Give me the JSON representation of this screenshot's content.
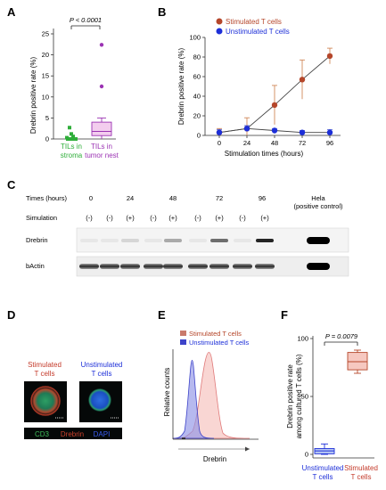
{
  "panels": {
    "A": "A",
    "B": "B",
    "C": "C",
    "D": "D",
    "E": "E",
    "F": "F"
  },
  "colors": {
    "stimulated": "#b5462a",
    "unstimulated": "#1d2fd8",
    "stroma": "#2fae3a",
    "nest": "#9b33b3",
    "box_fill_A": "#f3cdee",
    "box_fill_F": "#f6c8c0",
    "box_fill_F_unstim": "#b9c9f4"
  },
  "chart_data": [
    {
      "panel": "A",
      "type": "scatter",
      "ylabel": "Drebrin positive rate (%)",
      "ylim": [
        0,
        25
      ],
      "yticks": [
        "0",
        "5",
        "10",
        "15",
        "20",
        "25"
      ],
      "categories": [
        "TILs in stroma",
        "TILs in tumor nest"
      ],
      "category_lines": [
        [
          "TILs in",
          "stroma"
        ],
        [
          "TILs in",
          "tumor nest"
        ]
      ],
      "stroma_points": [
        0,
        0,
        0,
        0,
        0.3,
        0.6,
        1.2,
        2.7
      ],
      "nest_box": {
        "min": 0,
        "q1": 0.8,
        "median": 1.8,
        "q3": 4.0,
        "max": 5.0
      },
      "nest_outliers": [
        12.5,
        22.4
      ],
      "p_value": "P < 0.0001"
    },
    {
      "panel": "B",
      "type": "line",
      "xlabel": "Stimulation times (hours)",
      "ylabel": "Drebrin positive rate (%)",
      "x": [
        0,
        24,
        48,
        72,
        96
      ],
      "xticks": [
        "0",
        "24",
        "48",
        "72",
        "96"
      ],
      "ylim": [
        0,
        100
      ],
      "yticks": [
        "0",
        "20",
        "40",
        "60",
        "80",
        "100"
      ],
      "legend_position": "top-left",
      "series": [
        {
          "name": "Stimulated T cells",
          "values": [
            3,
            7,
            31,
            57,
            81
          ],
          "err": [
            4,
            11,
            20,
            20,
            8
          ]
        },
        {
          "name": "Unstimulated T cells",
          "values": [
            3,
            7,
            5,
            3,
            3
          ],
          "err": [
            3,
            3,
            2,
            2,
            3
          ]
        }
      ]
    },
    {
      "panel": "F",
      "type": "box",
      "ylabel_lines": [
        "Drebrin positive rate",
        "among cultured T cells (%)"
      ],
      "ylim": [
        0,
        100
      ],
      "yticks": [
        "0",
        "50",
        "100"
      ],
      "categories": [
        "Unstimulated T cells",
        "Stimulated T cells"
      ],
      "category_lines": [
        [
          "Unstimulated",
          "T cells"
        ],
        [
          "Stimulated",
          "T cells"
        ]
      ],
      "boxes": [
        {
          "min": 0,
          "q1": 0.5,
          "median": 3,
          "q3": 5,
          "max": 9
        },
        {
          "min": 70,
          "q1": 73,
          "median": 80,
          "q3": 88,
          "max": 90
        }
      ],
      "p_value": "P = 0.0079"
    },
    {
      "panel": "E",
      "type": "area",
      "ylabel": "Relative counts",
      "xlabel": "Drebrin",
      "legend": [
        "Stimulated T cells",
        "Unstimulated T cells"
      ]
    }
  ],
  "blot": {
    "times_label": "Times (hours)",
    "times": [
      "0",
      "24",
      "48",
      "72",
      "96"
    ],
    "hela_label_lines": [
      "Hela",
      "(positive control)"
    ],
    "simulation_label": "Simulation",
    "signs": [
      "(-)",
      "(-)",
      "(+)",
      "(-)",
      "(+)",
      "(-)",
      "(+)",
      "(-)",
      "(+)"
    ],
    "row_labels": [
      "Drebrin",
      "bActin"
    ]
  },
  "micro": {
    "stim_label_lines": [
      "Stimulated",
      "T cells"
    ],
    "unstim_label_lines": [
      "Unstimulated",
      "T cells"
    ],
    "legend_items": [
      "CD3",
      "Drebrin",
      "DAPI"
    ]
  }
}
